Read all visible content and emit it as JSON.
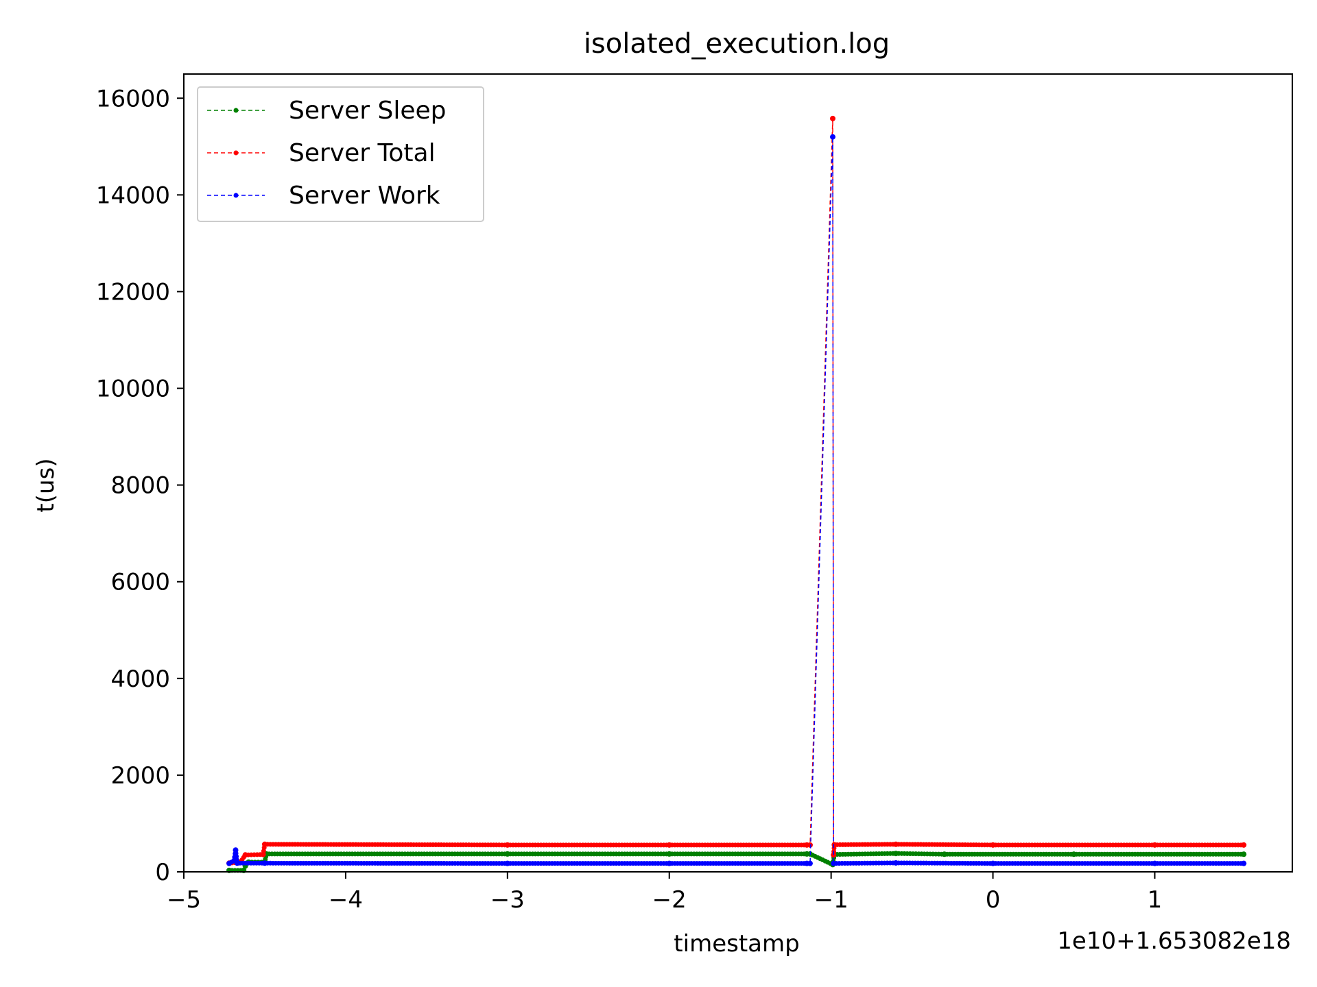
{
  "chart_data": {
    "type": "line",
    "title": "isolated_execution.log",
    "xlabel": "timestamp",
    "ylabel": "t(us)",
    "x_offset_label": "1e10+1.653082e18",
    "xlim": [
      -5.0,
      1.85
    ],
    "ylim": [
      0,
      16500
    ],
    "x_ticks": [
      -5,
      -4,
      -3,
      -2,
      -1,
      0,
      1
    ],
    "x_tick_labels": [
      "−5",
      "−4",
      "−3",
      "−2",
      "−1",
      "0",
      "1"
    ],
    "y_ticks": [
      0,
      2000,
      4000,
      6000,
      8000,
      10000,
      12000,
      14000,
      16000
    ],
    "y_tick_labels": [
      "0",
      "2000",
      "4000",
      "6000",
      "8000",
      "10000",
      "12000",
      "14000",
      "16000"
    ],
    "grid": false,
    "legend_position": "top-left",
    "series": [
      {
        "name": "Server Sleep",
        "color": "#008000",
        "points": [
          [
            -4.72,
            30
          ],
          [
            -4.63,
            30
          ],
          [
            -4.62,
            120
          ],
          [
            -4.6,
            200
          ],
          [
            -4.5,
            200
          ],
          [
            -4.49,
            370
          ],
          [
            -3.0,
            370
          ],
          [
            -2.0,
            370
          ],
          [
            -1.15,
            370
          ],
          [
            -1.13,
            370
          ],
          [
            -0.99,
            150
          ],
          [
            -0.98,
            360
          ],
          [
            -0.6,
            380
          ],
          [
            -0.3,
            365
          ],
          [
            0.5,
            365
          ],
          [
            1.55,
            365
          ]
        ]
      },
      {
        "name": "Server Total",
        "color": "#ff0000",
        "points": [
          [
            -4.72,
            180
          ],
          [
            -4.65,
            200
          ],
          [
            -4.62,
            350
          ],
          [
            -4.51,
            360
          ],
          [
            -4.5,
            570
          ],
          [
            -3.0,
            555
          ],
          [
            -2.0,
            555
          ],
          [
            -1.15,
            555
          ],
          [
            -1.13,
            555
          ],
          [
            -0.99,
            15580
          ],
          [
            -0.985,
            350
          ],
          [
            -0.98,
            560
          ],
          [
            -0.6,
            570
          ],
          [
            0.0,
            555
          ],
          [
            1.0,
            555
          ],
          [
            1.55,
            555
          ]
        ]
      },
      {
        "name": "Server Work",
        "color": "#0000ff",
        "points": [
          [
            -4.72,
            175
          ],
          [
            -4.69,
            230
          ],
          [
            -4.68,
            450
          ],
          [
            -4.67,
            180
          ],
          [
            -4.5,
            180
          ],
          [
            -3.0,
            175
          ],
          [
            -2.0,
            175
          ],
          [
            -1.15,
            175
          ],
          [
            -1.13,
            175
          ],
          [
            -0.99,
            15200
          ],
          [
            -0.985,
            175
          ],
          [
            -0.6,
            185
          ],
          [
            0.0,
            175
          ],
          [
            1.0,
            175
          ],
          [
            1.55,
            175
          ]
        ]
      }
    ]
  }
}
